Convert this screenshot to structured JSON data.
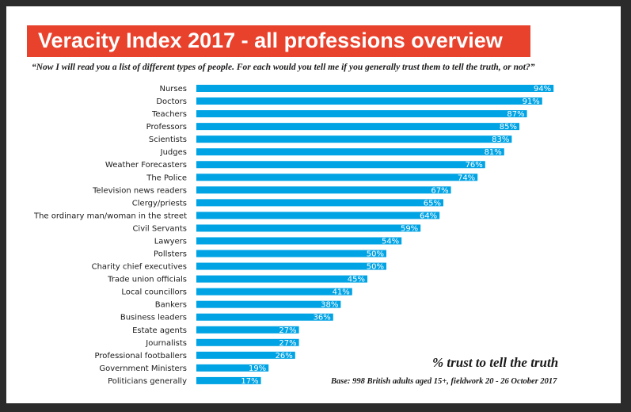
{
  "header": {
    "title": "Veracity Index 2017 - all professions overview",
    "question": "“Now I will read you a list of different types of people. For each would you tell me if you generally trust them to tell the truth, or not?”"
  },
  "footer": {
    "measure": "% trust to tell the truth",
    "base": "Base: 998 British adults aged 15+, fieldwork 20 - 26 October 2017"
  },
  "colors": {
    "bar": "#00a3e4",
    "title_background": "#e8412c",
    "frame": "#2b2b2b"
  },
  "chart_data": {
    "type": "bar",
    "orientation": "horizontal",
    "categories": [
      "Nurses",
      "Doctors",
      "Teachers",
      "Professors",
      "Scientists",
      "Judges",
      "Weather Forecasters",
      "The Police",
      "Television news readers",
      "Clergy/priests",
      "The ordinary man/woman in the street",
      "Civil Servants",
      "Lawyers",
      "Pollsters",
      "Charity chief executives",
      "Trade union officials",
      "Local councillors",
      "Bankers",
      "Business leaders",
      "Estate agents",
      "Journalists",
      "Professional footballers",
      "Government Ministers",
      "Politicians generally"
    ],
    "values": [
      94,
      91,
      87,
      85,
      83,
      81,
      76,
      74,
      67,
      65,
      64,
      59,
      54,
      50,
      50,
      45,
      41,
      38,
      36,
      27,
      27,
      26,
      19,
      17
    ],
    "value_labels": [
      "94%",
      "91%",
      "87%",
      "85%",
      "83%",
      "81%",
      "76%",
      "74%",
      "67%",
      "65%",
      "64%",
      "59%",
      "54%",
      "50%",
      "50%",
      "45%",
      "41%",
      "38%",
      "36%",
      "27%",
      "27%",
      "26%",
      "19%",
      "17%"
    ],
    "xlim": [
      0,
      100
    ],
    "grid": false,
    "legend": "none"
  }
}
